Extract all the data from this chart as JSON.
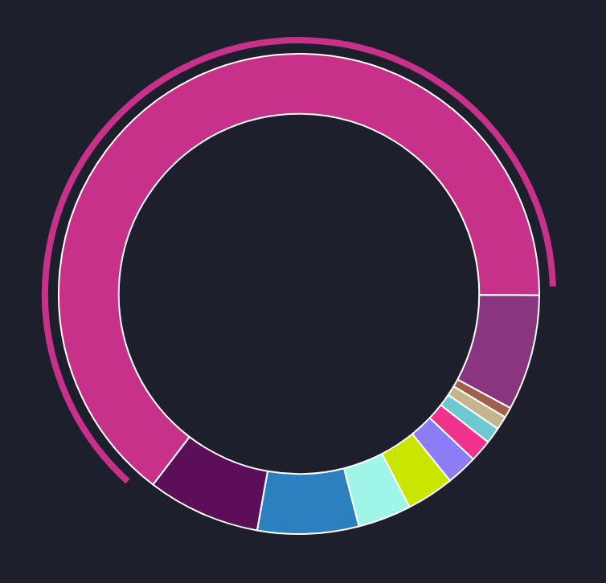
{
  "chart_data": {
    "type": "donut",
    "categories": [
      null,
      null,
      null,
      null,
      null,
      null,
      null,
      null,
      null,
      null,
      null
    ],
    "values": [
      64.7,
      7.8,
      0.7,
      0.9,
      1.1,
      1.5,
      2.1,
      3.2,
      3.6,
      6.8,
      7.6
    ],
    "colors": [
      "#c7318a",
      "#8a3580",
      "#a0604f",
      "#c8b48c",
      "#6ec8d2",
      "#f0328c",
      "#8c7cf5",
      "#c8e600",
      "#9ef5e8",
      "#2c80c0",
      "#5c0e58"
    ],
    "legend": false
  }
}
